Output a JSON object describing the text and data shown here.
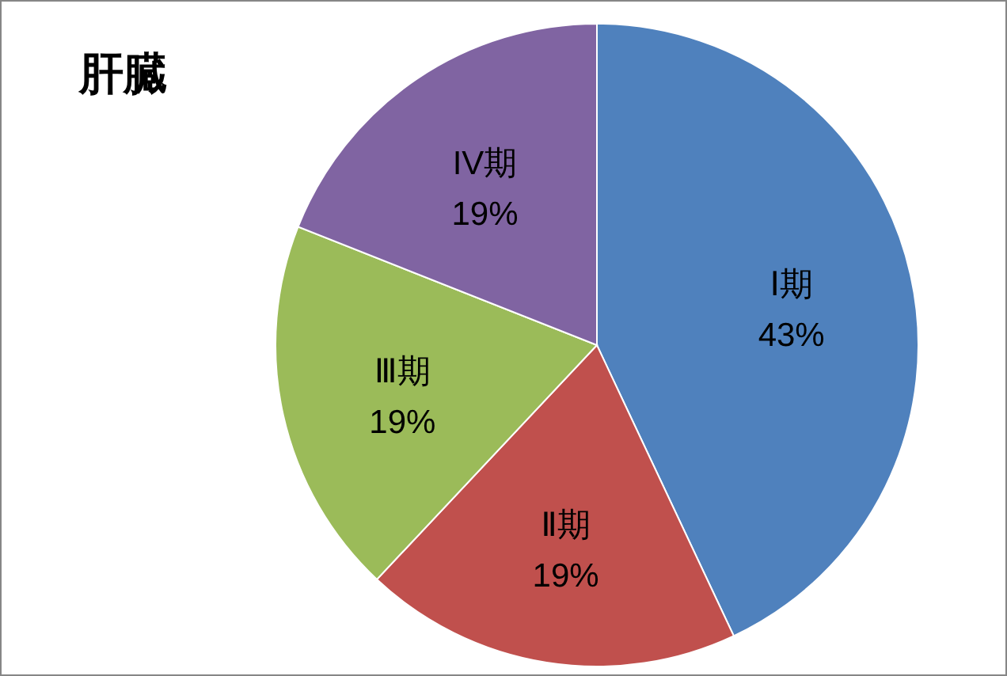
{
  "chart_data": {
    "type": "pie",
    "title": "肝臓",
    "categories": [
      "Ⅰ期",
      "Ⅱ期",
      "Ⅲ期",
      "IV期"
    ],
    "values": [
      43,
      19,
      19,
      19
    ],
    "value_labels": [
      "43%",
      "19%",
      "19%",
      "19%"
    ],
    "colors": [
      "#4f81bd",
      "#c0504d",
      "#9bbb59",
      "#8064a2"
    ],
    "legend": false
  }
}
